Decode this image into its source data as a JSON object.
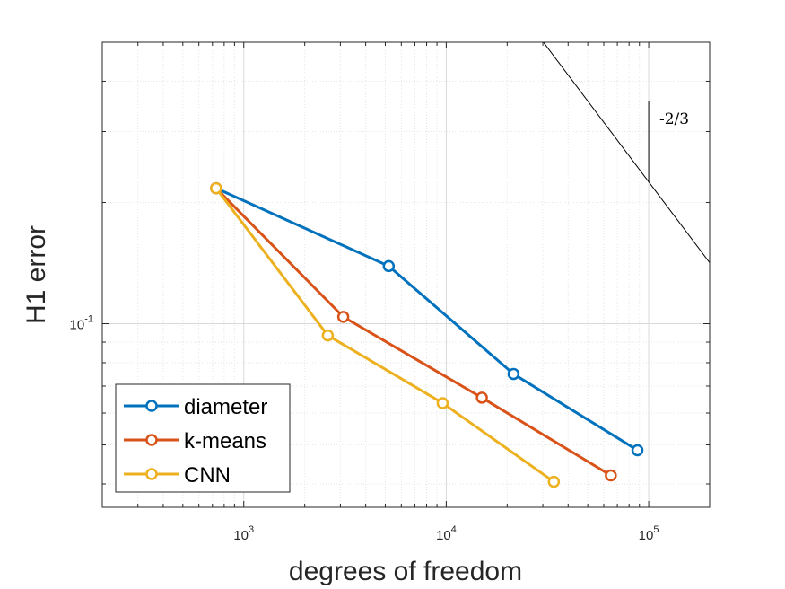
{
  "chart_data": {
    "type": "line",
    "scale": {
      "x": "log",
      "y": "log"
    },
    "xlabel": "degrees of freedom",
    "ylabel": "H1 error",
    "xlim": [
      200,
      200000
    ],
    "ylim": [
      0.035,
      0.5
    ],
    "grid": true,
    "minor_grid": true,
    "legend_location": "bottom-left",
    "x_ticks": [
      {
        "value": 1000,
        "base": "10",
        "exp": "3"
      },
      {
        "value": 10000,
        "base": "10",
        "exp": "4"
      },
      {
        "value": 100000,
        "base": "10",
        "exp": "5"
      }
    ],
    "y_ticks": [
      {
        "value": 0.1,
        "base": "10",
        "exp": "-1"
      }
    ],
    "series": [
      {
        "name": "diameter",
        "color": "#0072BD",
        "x": [
          730,
          5200,
          21500,
          88000
        ],
        "y": [
          0.217,
          0.139,
          0.075,
          0.0485
        ]
      },
      {
        "name": "k-means",
        "color": "#D95319",
        "x": [
          730,
          3100,
          15000,
          65000
        ],
        "y": [
          0.217,
          0.104,
          0.0655,
          0.042
        ]
      },
      {
        "name": "CNN",
        "color": "#EDB120",
        "x": [
          730,
          2600,
          9600,
          34000
        ],
        "y": [
          0.217,
          0.0935,
          0.0635,
          0.0405
        ]
      }
    ],
    "annotation": {
      "type": "slope-triangle",
      "label": "-2/3",
      "slope": -0.6667
    }
  }
}
